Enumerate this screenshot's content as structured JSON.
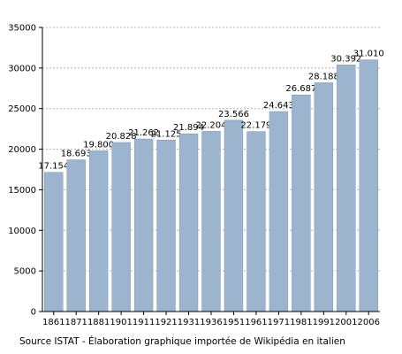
{
  "chart_data": {
    "type": "bar",
    "categories": [
      "1861",
      "1871",
      "1881",
      "1901",
      "1911",
      "1921",
      "1931",
      "1936",
      "1951",
      "1961",
      "1971",
      "1981",
      "1991",
      "2001",
      "2006"
    ],
    "values": [
      17154,
      18693,
      19800,
      20828,
      21262,
      21125,
      21894,
      22204,
      23566,
      22179,
      24643,
      26687,
      28188,
      30392,
      31010
    ],
    "data_labels": [
      "17.154",
      "18.693",
      "19.800",
      "20.828",
      "21.262",
      "21.125",
      "21.894",
      "22.204",
      "23.566",
      "22.179",
      "24.643",
      "26.687",
      "28.188",
      "30.392",
      "31.010"
    ],
    "y_ticks": [
      0,
      5000,
      10000,
      15000,
      20000,
      25000,
      30000,
      35000
    ],
    "ylim": [
      0,
      35000
    ],
    "grid": "horizontal-dashed",
    "bar_color": "#9db4cf",
    "bar_edge_color": "#7f97b3",
    "grid_color": "#b0b0b0",
    "axis_color": "#000000"
  },
  "source_note": "Source ISTAT - Élaboration graphique importée de Wikipédia en italien"
}
